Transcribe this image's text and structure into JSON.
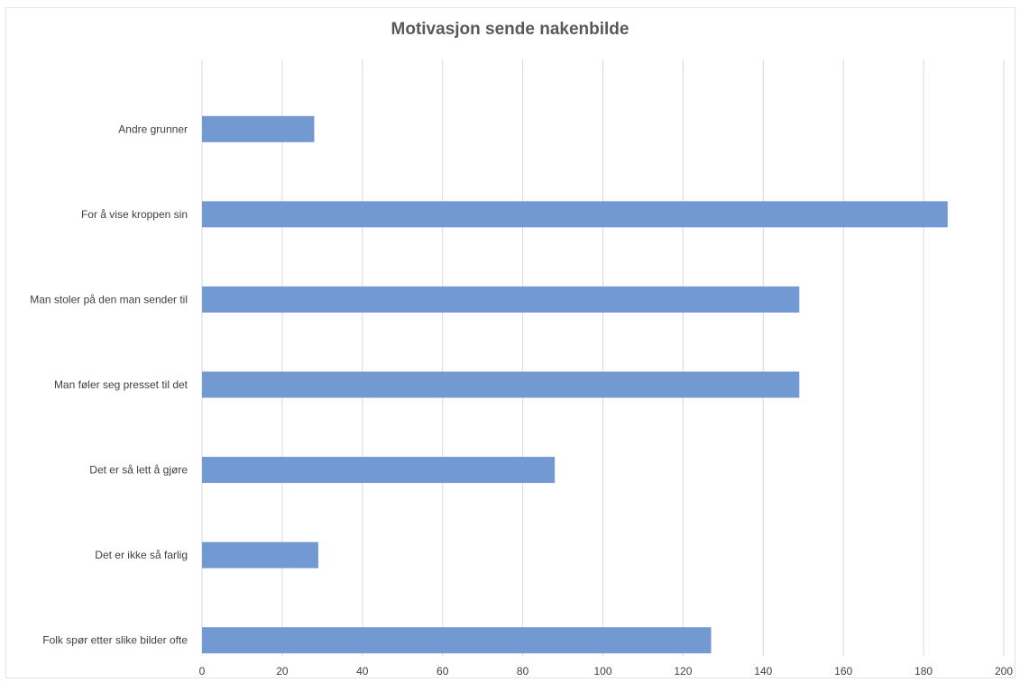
{
  "chart_data": {
    "type": "bar",
    "orientation": "horizontal",
    "title": "Motivasjon sende nakenbilde",
    "xlabel": "",
    "ylabel": "",
    "categories": [
      "Andre grunner",
      "For å vise kroppen sin",
      "Man stoler på den man sender til",
      "Man føler seg presset til det",
      "Det er så lett å gjøre",
      "Det er ikke så farlig",
      "Folk spør etter slike bilder ofte"
    ],
    "values": [
      28,
      186,
      149,
      149,
      88,
      29,
      127
    ],
    "xlim": [
      0,
      200
    ],
    "xticks": [
      "0",
      "20",
      "40",
      "60",
      "80",
      "100",
      "120",
      "140",
      "160",
      "180",
      "200"
    ],
    "grid": true,
    "legend": "none",
    "colors": {
      "bar": "#7299d2",
      "grid": "#d9d9d9",
      "text": "#404040",
      "title": "#595959"
    }
  }
}
